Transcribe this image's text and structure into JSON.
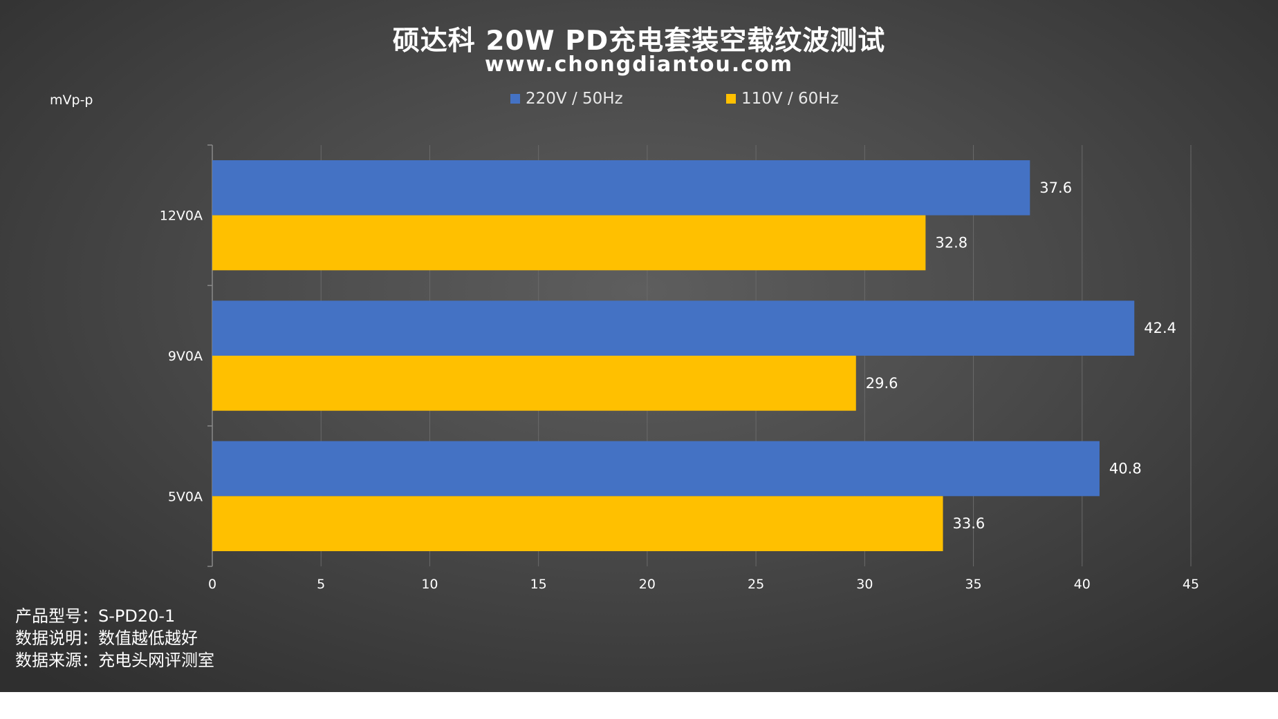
{
  "colors": {
    "series_220": "#4472c4",
    "series_110": "#ffc000",
    "text": "#ffffff",
    "grid": "#6a6a6a"
  },
  "chart_data": {
    "type": "bar",
    "orientation": "horizontal",
    "title": "硕达科 20W PD充电套装空载纹波测试",
    "subtitle": "www.chongdiantou.com",
    "unit_label": "mVp-p",
    "categories": [
      "12V0A",
      "9V0A",
      "5V0A"
    ],
    "series": [
      {
        "name": "220V / 50Hz",
        "values": [
          37.6,
          42.4,
          40.8
        ]
      },
      {
        "name": "110V / 60Hz",
        "values": [
          32.8,
          29.6,
          33.6
        ]
      }
    ],
    "xlim": [
      0,
      45
    ],
    "xticks": [
      0,
      5,
      10,
      15,
      20,
      25,
      30,
      35,
      40,
      45
    ],
    "grid": true,
    "legend_position": "top"
  },
  "notes": [
    "产品型号：S-PD20-1",
    "数据说明：数值越低越好",
    "数据来源：充电头网评测室"
  ]
}
